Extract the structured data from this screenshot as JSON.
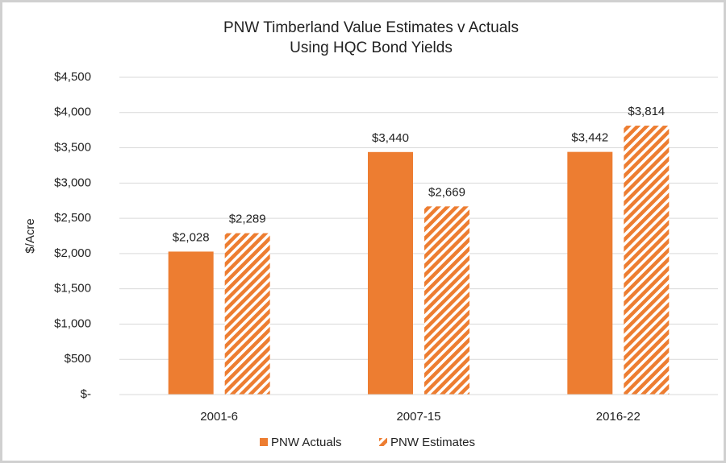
{
  "chart_data": {
    "type": "bar",
    "title": "PNW Timberland Value Estimates v Actuals",
    "subtitle": "Using HQC Bond Yields",
    "y_label": "$/Acre",
    "categories": [
      "2001-6",
      "2007-15",
      "2016-22"
    ],
    "series": [
      {
        "name": "PNW Actuals",
        "color": "#ed7d31",
        "hatched": false,
        "values": [
          2028,
          3440,
          3442
        ],
        "value_labels": [
          "$2,028",
          "$3,440",
          "$3,442"
        ]
      },
      {
        "name": "PNW Estimates",
        "color": "#ed7d31",
        "hatched": true,
        "values": [
          2289,
          2669,
          3814
        ],
        "value_labels": [
          "$2,289",
          "$2,669",
          "$3,814"
        ]
      }
    ],
    "ylim": [
      0,
      4500
    ],
    "yticks": [
      {
        "value": 0,
        "label": "$-"
      },
      {
        "value": 500,
        "label": "$500"
      },
      {
        "value": 1000,
        "label": "$1,000"
      },
      {
        "value": 1500,
        "label": "$1,500"
      },
      {
        "value": 2000,
        "label": "$2,000"
      },
      {
        "value": 2500,
        "label": "$2,500"
      },
      {
        "value": 3000,
        "label": "$3,000"
      },
      {
        "value": 3500,
        "label": "$3,500"
      },
      {
        "value": 4000,
        "label": "$4,000"
      },
      {
        "value": 4500,
        "label": "$4,500"
      }
    ],
    "grid": true,
    "legend": "bottom"
  }
}
